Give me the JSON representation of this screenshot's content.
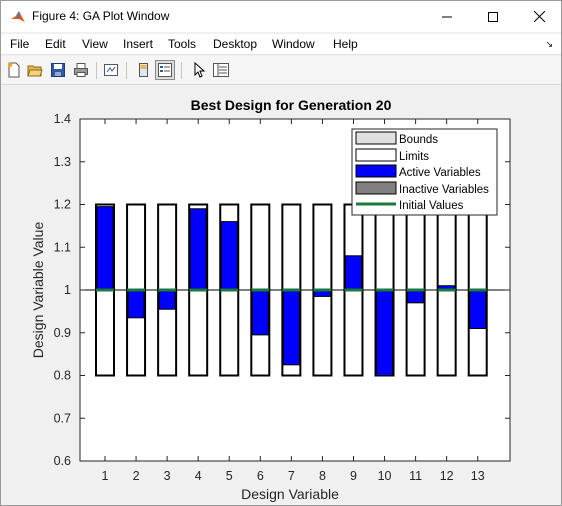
{
  "window": {
    "title": "Figure 4: GA Plot Window"
  },
  "menubar": {
    "items": [
      "File",
      "Edit",
      "View",
      "Insert",
      "Tools",
      "Desktop",
      "Window",
      "Help"
    ]
  },
  "toolbar": {
    "icons": [
      "new-figure-icon",
      "open-file-icon",
      "save-icon",
      "print-icon",
      "link-plot-icon",
      "hide-plot-tools-icon",
      "show-plot-tools-icon",
      "edit-plot-arrow-icon",
      "property-inspector-icon"
    ]
  },
  "colors": {
    "active": "#0000ff",
    "inactive": "#808080",
    "initial_values": "#1a7a3a",
    "bounds_fill": "#e0e0e0"
  },
  "chart_data": {
    "type": "bar",
    "title": "Best Design for Generation 20",
    "xlabel": "Design Variable",
    "ylabel": "Design Variable Value",
    "ylim": [
      0.6,
      1.4
    ],
    "yticks": [
      "0.6",
      "0.7",
      "0.8",
      "0.9",
      "1",
      "1.1",
      "1.2",
      "1.3",
      "1.4"
    ],
    "categories": [
      "1",
      "2",
      "3",
      "4",
      "5",
      "6",
      "7",
      "8",
      "9",
      "10",
      "11",
      "12",
      "13"
    ],
    "limits": {
      "lower": 0.8,
      "upper": 1.2
    },
    "initial_value": 1.0,
    "series": [
      {
        "name": "Active Variables",
        "values": [
          1.195,
          0.935,
          0.955,
          1.19,
          1.16,
          0.895,
          0.825,
          0.985,
          1.08,
          0.8,
          0.97,
          1.01,
          0.91
        ]
      }
    ],
    "legend": {
      "placement": "top-right",
      "entries": [
        "Bounds",
        "Limits",
        "Active Variables",
        "Inactive Variables",
        "Initial Values"
      ]
    },
    "grid": false
  }
}
